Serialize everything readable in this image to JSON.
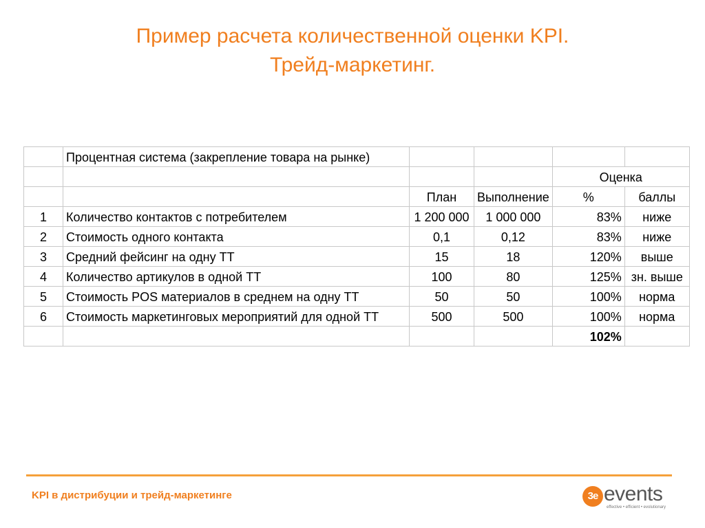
{
  "title": {
    "line1": "Пример расчета количественной оценки KPI.",
    "line2": "Трейд-маркетинг."
  },
  "table": {
    "system_label": "Процентная система (закрепление товара на рынке)",
    "assessment_header": "Оценка",
    "col_plan": "План",
    "col_actual": "Выполнение",
    "col_percent": "%",
    "col_score": "баллы",
    "rows": [
      {
        "n": "1",
        "name": "Количество контактов с потребителем",
        "plan": "1 200 000",
        "actual": "1 000 000",
        "percent": "83%",
        "score": "ниже"
      },
      {
        "n": "2",
        "name": "Стоимость одного контакта",
        "plan": "0,1",
        "actual": "0,12",
        "percent": "83%",
        "score": "ниже"
      },
      {
        "n": "3",
        "name": "Средний фейсинг на одну ТТ",
        "plan": "15",
        "actual": "18",
        "percent": "120%",
        "score": "выше"
      },
      {
        "n": "4",
        "name": "Количество артикулов в одной ТТ",
        "plan": "100",
        "actual": "80",
        "percent": "125%",
        "score": "зн. выше"
      },
      {
        "n": "5",
        "name": "Стоимость POS материалов в среднем на одну ТТ",
        "plan": "50",
        "actual": "50",
        "percent": "100%",
        "score": "норма"
      },
      {
        "n": "6",
        "name": "Стоимость маркетинговых мероприятий для одной ТТ",
        "plan": "500",
        "actual": "500",
        "percent": "100%",
        "score": "норма"
      }
    ],
    "total_percent": "102%"
  },
  "footer": {
    "text": "KPI в дистрибуции и трейд-маркетинге",
    "logo_mark": "3e",
    "logo_word": "events",
    "logo_tagline": "effective • efficient • evolutionary"
  },
  "colors": {
    "accent": "#f07f1f",
    "rule": "#f5a03a",
    "grid": "#c8c8c8"
  }
}
